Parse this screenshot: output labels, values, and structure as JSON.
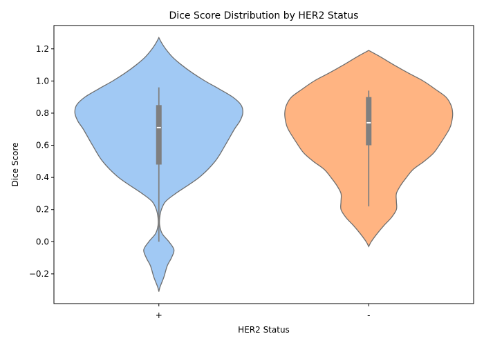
{
  "chart_data": {
    "type": "violin",
    "title": "Dice Score Distribution by HER2 Status",
    "xlabel": "HER2 Status",
    "ylabel": "Dice Score",
    "categories": [
      "+",
      "-"
    ],
    "ylim": [
      -0.385,
      1.345
    ],
    "yticks": [
      -0.2,
      0.0,
      0.2,
      0.4,
      0.6,
      0.8,
      1.0,
      1.2
    ],
    "ytick_labels": [
      "−0.2",
      "0.0",
      "0.2",
      "0.4",
      "0.6",
      "0.8",
      "1.0",
      "1.2"
    ],
    "grid": false,
    "violins": [
      {
        "category": "+",
        "color": "#a1c9f4",
        "range": [
          -0.31,
          1.27
        ],
        "whisker": [
          0.0,
          0.96
        ],
        "quartiles": [
          0.48,
          0.85
        ],
        "median": 0.71,
        "density": [
          [
            -0.31,
            0.0
          ],
          [
            -0.28,
            0.015
          ],
          [
            -0.22,
            0.06
          ],
          [
            -0.15,
            0.1
          ],
          [
            -0.1,
            0.15
          ],
          [
            -0.05,
            0.18
          ],
          [
            0.0,
            0.12
          ],
          [
            0.05,
            0.04
          ],
          [
            0.1,
            0.01
          ],
          [
            0.15,
            0.01
          ],
          [
            0.2,
            0.03
          ],
          [
            0.25,
            0.08
          ],
          [
            0.3,
            0.2
          ],
          [
            0.4,
            0.48
          ],
          [
            0.5,
            0.67
          ],
          [
            0.6,
            0.79
          ],
          [
            0.7,
            0.9
          ],
          [
            0.75,
            0.965
          ],
          [
            0.8,
            1.0
          ],
          [
            0.85,
            0.98
          ],
          [
            0.9,
            0.88
          ],
          [
            0.95,
            0.72
          ],
          [
            1.0,
            0.55
          ],
          [
            1.05,
            0.4
          ],
          [
            1.1,
            0.27
          ],
          [
            1.15,
            0.16
          ],
          [
            1.2,
            0.08
          ],
          [
            1.24,
            0.03
          ],
          [
            1.27,
            0.0
          ]
        ]
      },
      {
        "category": "-",
        "color": "#ffb482",
        "range": [
          -0.03,
          1.19
        ],
        "whisker": [
          0.22,
          0.94
        ],
        "quartiles": [
          0.6,
          0.9
        ],
        "median": 0.74,
        "density": [
          [
            -0.03,
            0.0
          ],
          [
            0.0,
            0.03
          ],
          [
            0.05,
            0.1
          ],
          [
            0.1,
            0.18
          ],
          [
            0.15,
            0.27
          ],
          [
            0.2,
            0.33
          ],
          [
            0.25,
            0.33
          ],
          [
            0.3,
            0.33
          ],
          [
            0.35,
            0.38
          ],
          [
            0.4,
            0.45
          ],
          [
            0.45,
            0.53
          ],
          [
            0.5,
            0.66
          ],
          [
            0.55,
            0.77
          ],
          [
            0.6,
            0.84
          ],
          [
            0.7,
            0.96
          ],
          [
            0.75,
            0.99
          ],
          [
            0.8,
            1.0
          ],
          [
            0.85,
            0.98
          ],
          [
            0.9,
            0.92
          ],
          [
            0.95,
            0.79
          ],
          [
            1.0,
            0.65
          ],
          [
            1.05,
            0.47
          ],
          [
            1.1,
            0.3
          ],
          [
            1.15,
            0.14
          ],
          [
            1.19,
            0.0
          ]
        ]
      }
    ],
    "outline_color": "#6e6e6e",
    "box_color": "#7f7f7f",
    "median_color": "#ffffff"
  }
}
